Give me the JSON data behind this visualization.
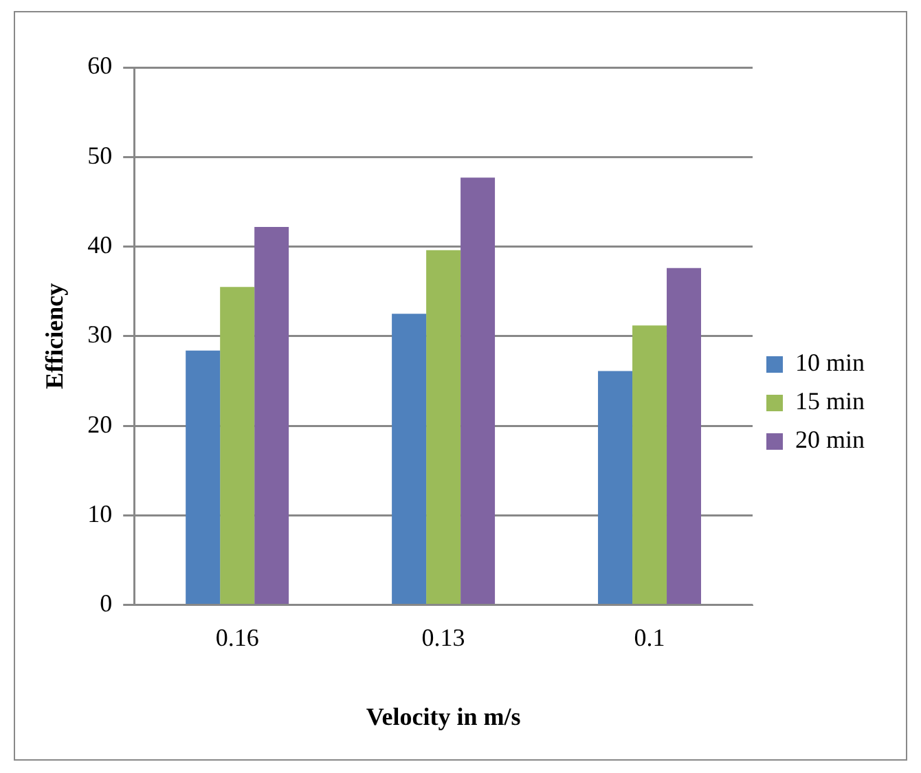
{
  "chart_data": {
    "type": "bar",
    "xlabel": "Velocity in m/s",
    "ylabel": "Efficiency",
    "categories": [
      "0.16",
      "0.13",
      "0.1"
    ],
    "series": [
      {
        "name": "10 min",
        "color": "#4f81bd",
        "values": [
          28.4,
          32.5,
          26.1
        ]
      },
      {
        "name": "15 min",
        "color": "#9bbb59",
        "values": [
          35.5,
          39.6,
          31.2
        ]
      },
      {
        "name": "20 min",
        "color": "#8064a2",
        "values": [
          42.2,
          47.7,
          37.6
        ]
      }
    ],
    "ylim": [
      0,
      60
    ],
    "yticks": [
      0,
      10,
      20,
      30,
      40,
      50,
      60
    ],
    "grid": "y",
    "legend": "right"
  }
}
